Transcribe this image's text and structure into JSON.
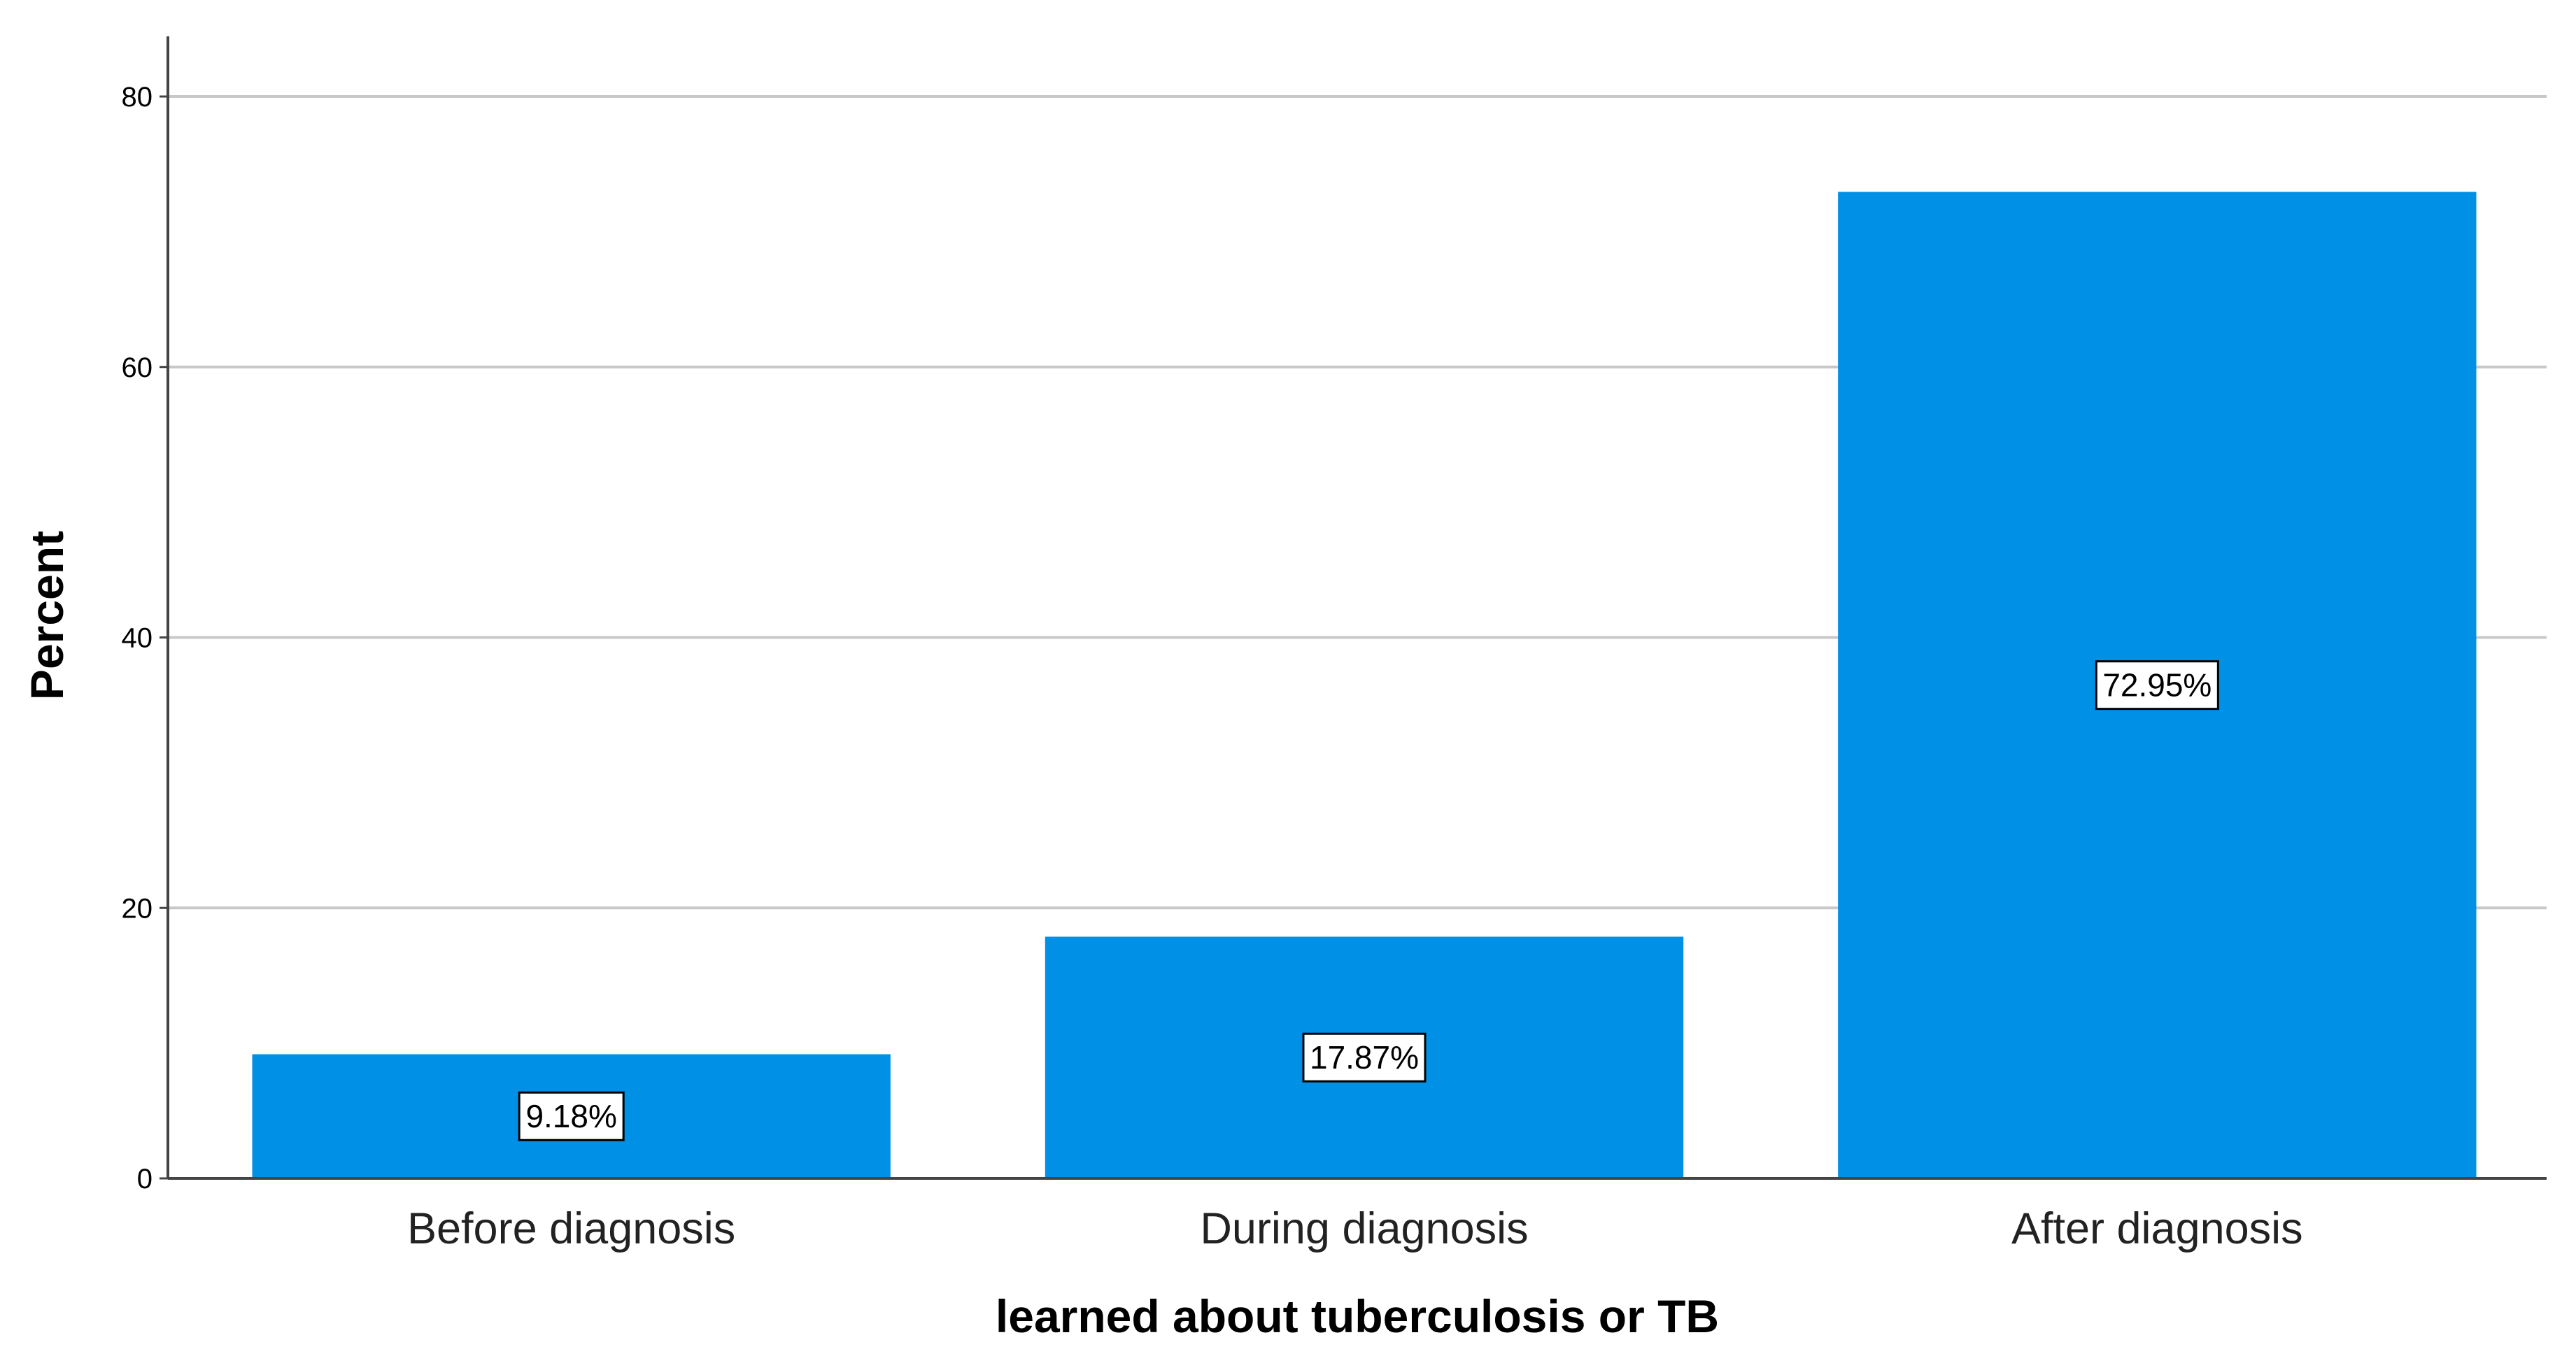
{
  "chart_data": {
    "type": "bar",
    "categories": [
      "Before diagnosis",
      "During diagnosis",
      "After diagnosis"
    ],
    "values": [
      9.18,
      17.87,
      72.95
    ],
    "data_labels": [
      "9.18%",
      "17.87%",
      "72.95%"
    ],
    "xlabel": "learned about tuberculosis or TB",
    "ylabel": "Percent",
    "ylim": [
      0,
      80
    ],
    "yticks": [
      0,
      20,
      40,
      60,
      80
    ],
    "grid": true,
    "legend": "none",
    "bar_color": "#0090e6",
    "grid_color": "#c8c8c8"
  }
}
